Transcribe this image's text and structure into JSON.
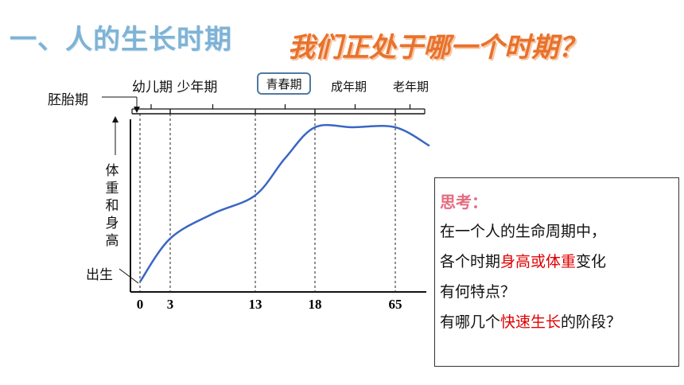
{
  "title": {
    "left": "一、人的生长时期",
    "right": "我们正处于哪一个时期？"
  },
  "stages": {
    "infant_child": "幼儿期 少年期",
    "puberty": "青春期",
    "adult": "成年期",
    "elder": "老年期"
  },
  "labels": {
    "embryo": "胚胎期",
    "birth": "出生",
    "y_axis": [
      "体",
      "重",
      "和",
      "身",
      "高"
    ]
  },
  "chart_data": {
    "type": "line",
    "x_ticks": [
      0,
      3,
      13,
      18,
      65
    ],
    "xlabel": "",
    "ylabel": "体重和身高",
    "series": [
      {
        "values": [
          [
            0,
            0.05
          ],
          [
            3,
            0.4
          ],
          [
            8,
            0.6
          ],
          [
            13,
            0.75
          ],
          [
            15.5,
            1.05
          ],
          [
            18,
            1.3
          ],
          [
            40,
            1.3
          ],
          [
            65,
            1.3
          ],
          [
            70,
            1.15
          ]
        ]
      }
    ],
    "line_color": "#3a66c4"
  },
  "think": {
    "title": "思考：",
    "line1": "在一个人的生命周期中，",
    "line2_a": "各个时期",
    "line2_red": "身高或体重",
    "line2_b": "变化",
    "line3": "有何特点？",
    "line4_a": "有哪几个",
    "line4_red": "快速生长",
    "line4_b": "的阶段？"
  }
}
